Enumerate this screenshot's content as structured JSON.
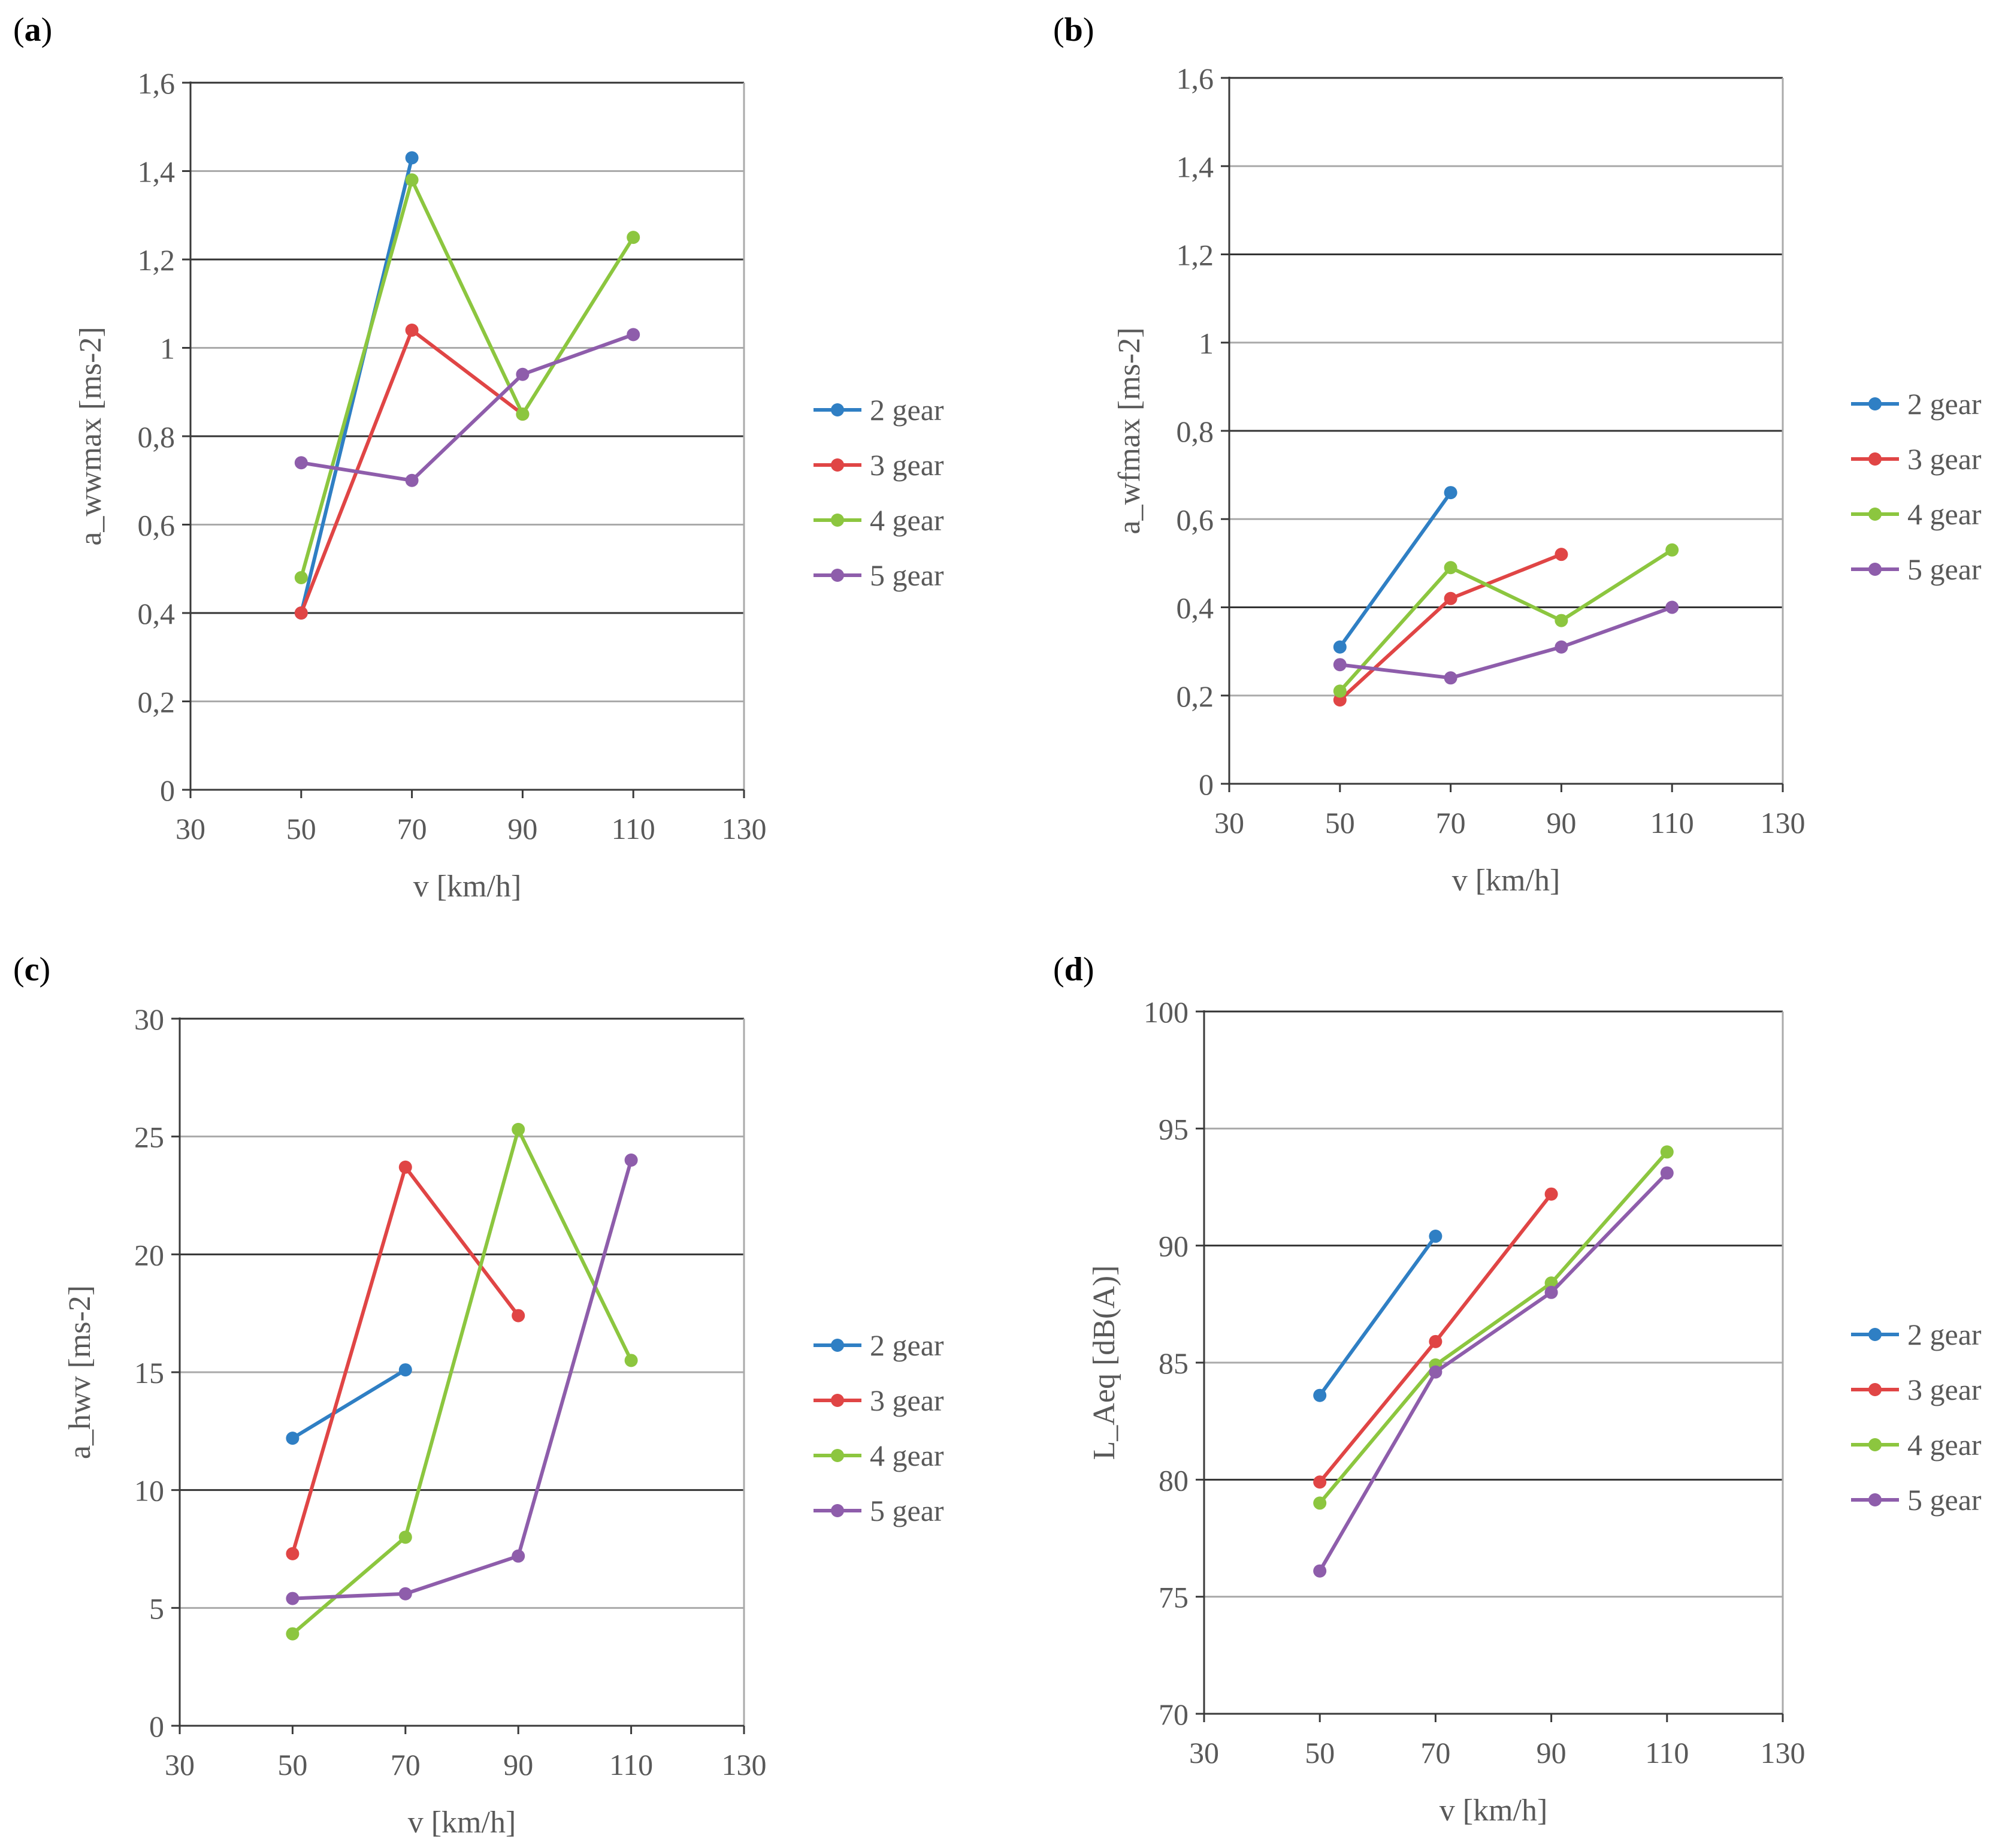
{
  "legend_labels": [
    "2 gear",
    "3 gear",
    "4 gear",
    "5 gear"
  ],
  "colors": {
    "2 gear": "#2f7fc4",
    "3 gear": "#e04545",
    "4 gear": "#8cc63f",
    "5 gear": "#8e5dab",
    "axis": "#3a3a3a",
    "grid_dark": "#333333",
    "grid_light": "#aaaaaa",
    "tick_text": "#595959"
  },
  "chart_data": [
    {
      "panel_label": "(a)",
      "type": "line",
      "xlabel": "v [km/h]",
      "ylabel": "a_wwmax  [ms-2]",
      "xlim": [
        30,
        130
      ],
      "ylim": [
        0,
        1.6
      ],
      "x_ticks": [
        "30",
        "50",
        "70",
        "90",
        "110",
        "130"
      ],
      "y_ticks": [
        "0",
        "0,2",
        "0,4",
        "0,6",
        "0,8",
        "1",
        "1,2",
        "1,4",
        "1,6"
      ],
      "legend": "right",
      "series": [
        {
          "name": "2 gear",
          "x": [
            50,
            70
          ],
          "y": [
            0.4,
            1.43
          ]
        },
        {
          "name": "3 gear",
          "x": [
            50,
            70,
            90
          ],
          "y": [
            0.4,
            1.04,
            0.85
          ]
        },
        {
          "name": "4 gear",
          "x": [
            50,
            70,
            90,
            110
          ],
          "y": [
            0.48,
            1.38,
            0.85,
            1.25
          ]
        },
        {
          "name": "5 gear",
          "x": [
            50,
            70,
            90,
            110
          ],
          "y": [
            0.74,
            0.7,
            0.94,
            1.03
          ]
        }
      ]
    },
    {
      "panel_label": "(b)",
      "type": "line",
      "xlabel": "v [km/h]",
      "ylabel": "a_wfmax  [ms-2]",
      "xlim": [
        30,
        130
      ],
      "ylim": [
        0,
        1.6
      ],
      "x_ticks": [
        "30",
        "50",
        "70",
        "90",
        "110",
        "130"
      ],
      "y_ticks": [
        "0",
        "0,2",
        "0,4",
        "0,6",
        "0,8",
        "1",
        "1,2",
        "1,4",
        "1,6"
      ],
      "legend": "right",
      "series": [
        {
          "name": "2 gear",
          "x": [
            50,
            70
          ],
          "y": [
            0.31,
            0.66
          ]
        },
        {
          "name": "3 gear",
          "x": [
            50,
            70,
            90
          ],
          "y": [
            0.19,
            0.42,
            0.52
          ]
        },
        {
          "name": "4 gear",
          "x": [
            50,
            70,
            90,
            110
          ],
          "y": [
            0.21,
            0.49,
            0.37,
            0.53
          ]
        },
        {
          "name": "5 gear",
          "x": [
            50,
            70,
            90,
            110
          ],
          "y": [
            0.27,
            0.24,
            0.31,
            0.4
          ]
        }
      ]
    },
    {
      "panel_label": "(c)",
      "type": "line",
      "xlabel": "v [km/h]",
      "ylabel": "a_hwv [ms-2]",
      "xlim": [
        30,
        130
      ],
      "ylim": [
        0,
        30
      ],
      "x_ticks": [
        "30",
        "50",
        "70",
        "90",
        "110",
        "130"
      ],
      "y_ticks": [
        "0",
        "5",
        "10",
        "15",
        "20",
        "25",
        "30"
      ],
      "legend": "right",
      "series": [
        {
          "name": "2 gear",
          "x": [
            50,
            70
          ],
          "y": [
            12.2,
            15.1
          ]
        },
        {
          "name": "3 gear",
          "x": [
            50,
            70,
            90
          ],
          "y": [
            7.3,
            23.7,
            17.4
          ]
        },
        {
          "name": "4 gear",
          "x": [
            50,
            70,
            90,
            110
          ],
          "y": [
            3.9,
            8.0,
            25.3,
            15.5
          ]
        },
        {
          "name": "5 gear",
          "x": [
            50,
            70,
            90,
            110
          ],
          "y": [
            5.4,
            5.6,
            7.2,
            24.0
          ]
        }
      ]
    },
    {
      "panel_label": "(d)",
      "type": "line",
      "xlabel": "v [km/h]",
      "ylabel": "L_Aeq [dB(A)]",
      "xlim": [
        30,
        130
      ],
      "ylim": [
        70,
        100
      ],
      "x_ticks": [
        "30",
        "50",
        "70",
        "90",
        "110",
        "130"
      ],
      "y_ticks": [
        "70",
        "75",
        "80",
        "85",
        "90",
        "95",
        "100"
      ],
      "legend": "right",
      "series": [
        {
          "name": "2 gear",
          "x": [
            50,
            70
          ],
          "y": [
            83.6,
            90.4
          ]
        },
        {
          "name": "3 gear",
          "x": [
            50,
            70,
            90
          ],
          "y": [
            79.9,
            85.9,
            92.2
          ]
        },
        {
          "name": "4 gear",
          "x": [
            50,
            70,
            90,
            110
          ],
          "y": [
            79.0,
            84.9,
            88.4,
            94.0
          ]
        },
        {
          "name": "5 gear",
          "x": [
            50,
            70,
            90,
            110
          ],
          "y": [
            76.1,
            84.6,
            88.0,
            93.1
          ]
        }
      ]
    }
  ]
}
